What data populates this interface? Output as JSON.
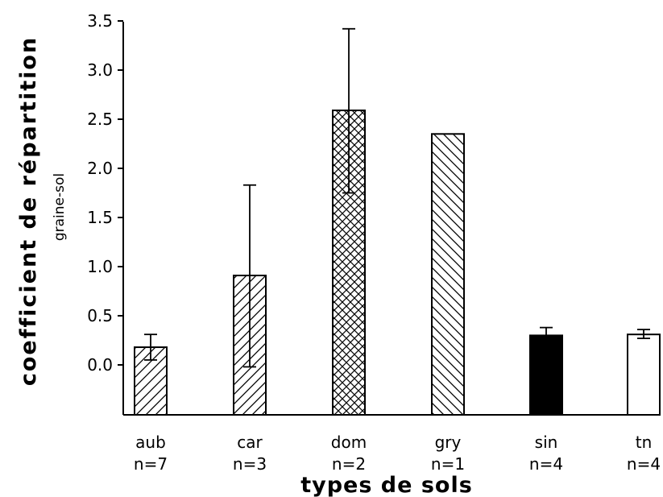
{
  "chart_data": {
    "type": "bar",
    "xlabel": "types de sols",
    "ylabel": "coefficient de répartition",
    "ylabel_sub": "graine-sol",
    "ylim": [
      -0.5,
      3.5
    ],
    "yticks": [
      "0.0",
      "0.5",
      "1.0",
      "1.5",
      "2.0",
      "2.5",
      "3.0",
      "3.5"
    ],
    "categories": [
      "aub",
      "car",
      "dom",
      "gry",
      "sin",
      "tn"
    ],
    "n_labels": [
      "n=7",
      "n=3",
      "n=2",
      "n=1",
      "n=4",
      "n=4"
    ],
    "values": [
      0.18,
      0.91,
      2.59,
      2.35,
      0.3,
      0.31
    ],
    "error_low": [
      0.05,
      -0.02,
      1.75,
      null,
      0.3,
      0.27
    ],
    "error_high": [
      0.31,
      1.83,
      3.42,
      null,
      0.38,
      0.36
    ],
    "fills": [
      "hatch-forward",
      "hatch-forward",
      "crosshatch",
      "hatch-backward",
      "solid-black",
      "white"
    ]
  }
}
